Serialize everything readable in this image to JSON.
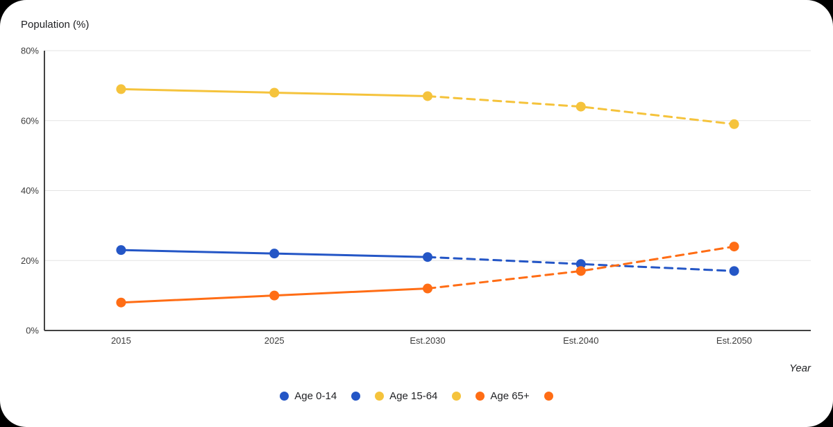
{
  "colors": {
    "background": "#000000",
    "card": "#FFFFFF",
    "gridline": "#E3E3E3",
    "axis": "#424242",
    "text": "#202124",
    "tick_text": "#3C3C3C",
    "blue": "#2456C6",
    "yellow": "#F5C33C",
    "orange": "#FF6D15"
  },
  "chart_data": {
    "type": "line",
    "title": "Population (%)",
    "xlabel": "Year",
    "x": [
      "2015",
      "2025",
      "Est.2030",
      "Est.2040",
      "Est.2050"
    ],
    "ylim": [
      0,
      80
    ],
    "yticks": [
      0,
      20,
      40,
      60,
      80
    ],
    "ytick_labels": [
      "0%",
      "20%",
      "40%",
      "60%",
      "80%"
    ],
    "grid": true,
    "legend_position": "bottom",
    "dashed_from_index": 2,
    "point_radius": 7,
    "line_width": 3,
    "series": [
      {
        "name": "Age 0-14",
        "color": "#2456C6",
        "values": [
          23,
          22,
          21,
          19,
          17
        ]
      },
      {
        "name": "Age 15-64",
        "color": "#F5C33C",
        "values": [
          69,
          68,
          67,
          64,
          59
        ]
      },
      {
        "name": "Age 65+",
        "color": "#FF6D15",
        "values": [
          8,
          10,
          12,
          17,
          24
        ]
      }
    ]
  },
  "legend": {
    "items": [
      {
        "label": "Age 0-14",
        "color": "#2456C6"
      },
      {
        "label": "",
        "color": "#2456C6"
      },
      {
        "label": "Age 15-64",
        "color": "#F5C33C"
      },
      {
        "label": "",
        "color": "#F5C33C"
      },
      {
        "label": "Age 65+",
        "color": "#FF6D15"
      },
      {
        "label": "",
        "color": "#FF6D15"
      }
    ]
  }
}
